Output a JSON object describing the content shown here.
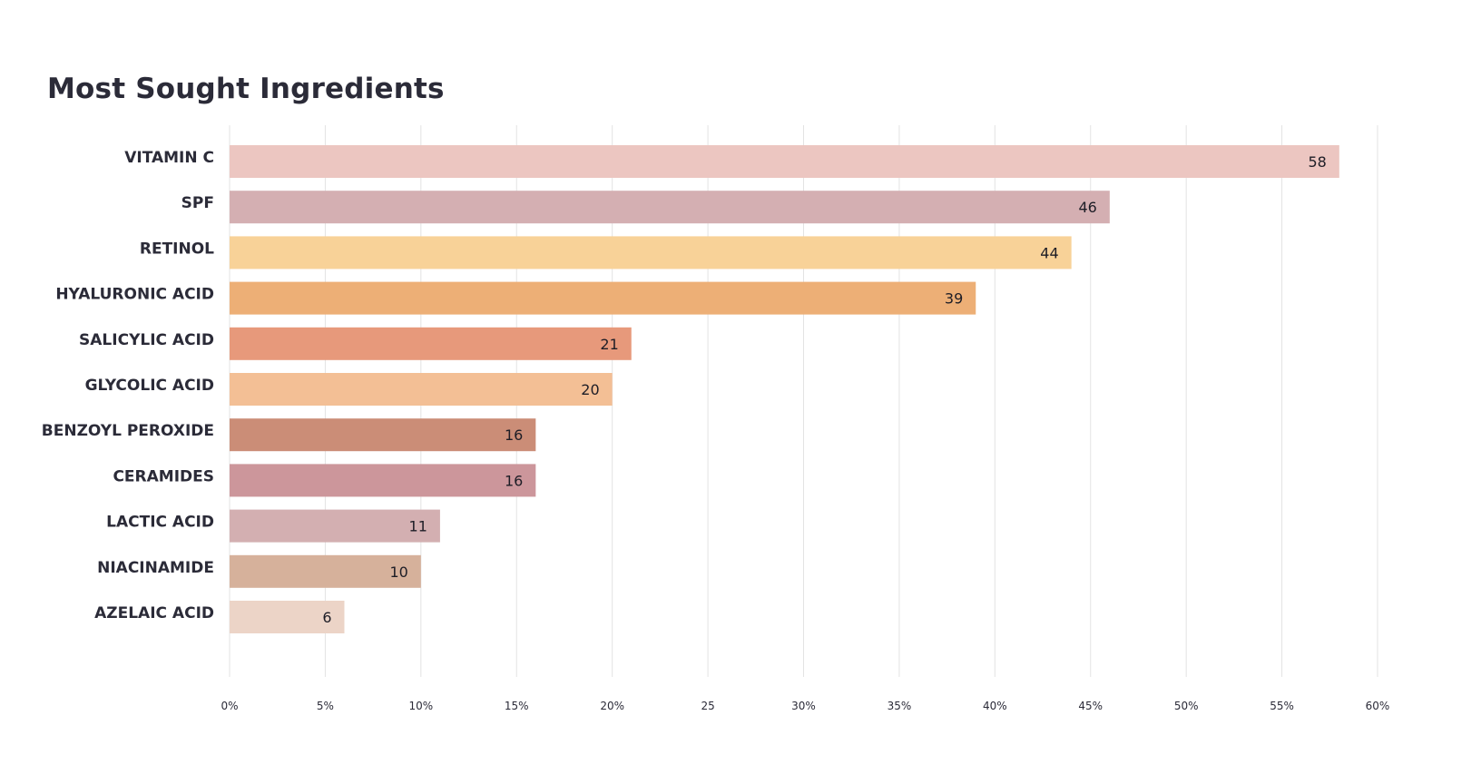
{
  "chart_data": {
    "type": "bar",
    "orientation": "horizontal",
    "title": "Most Sought Ingredients",
    "categories": [
      "VITAMIN C",
      "SPF",
      "RETINOL",
      "HYALURONIC ACID",
      "SALICYLIC ACID",
      "GLYCOLIC ACID",
      "BENZOYL PEROXIDE",
      "CERAMIDES",
      "LACTIC ACID",
      "NIACINAMIDE",
      "AZELAIC ACID"
    ],
    "values": [
      58,
      46,
      44,
      39,
      21,
      20,
      16,
      16,
      11,
      10,
      6
    ],
    "colors": [
      "#ecc6c1",
      "#d4afb2",
      "#f8d298",
      "#edaf76",
      "#e7997b",
      "#f3bf95",
      "#cb8d77",
      "#cc969b",
      "#d3afb1",
      "#d6b19b",
      "#ecd4c7"
    ],
    "xlim": [
      0,
      60
    ],
    "xticks": [
      0,
      5,
      10,
      15,
      20,
      25,
      30,
      35,
      40,
      45,
      50,
      55,
      60
    ],
    "xtick_labels": [
      "0%",
      "5%",
      "10%",
      "15%",
      "20%",
      "25",
      "30%",
      "35%",
      "40%",
      "45%",
      "50%",
      "55%",
      "60%"
    ],
    "grid": "vertical",
    "xlabel": "",
    "ylabel": ""
  }
}
